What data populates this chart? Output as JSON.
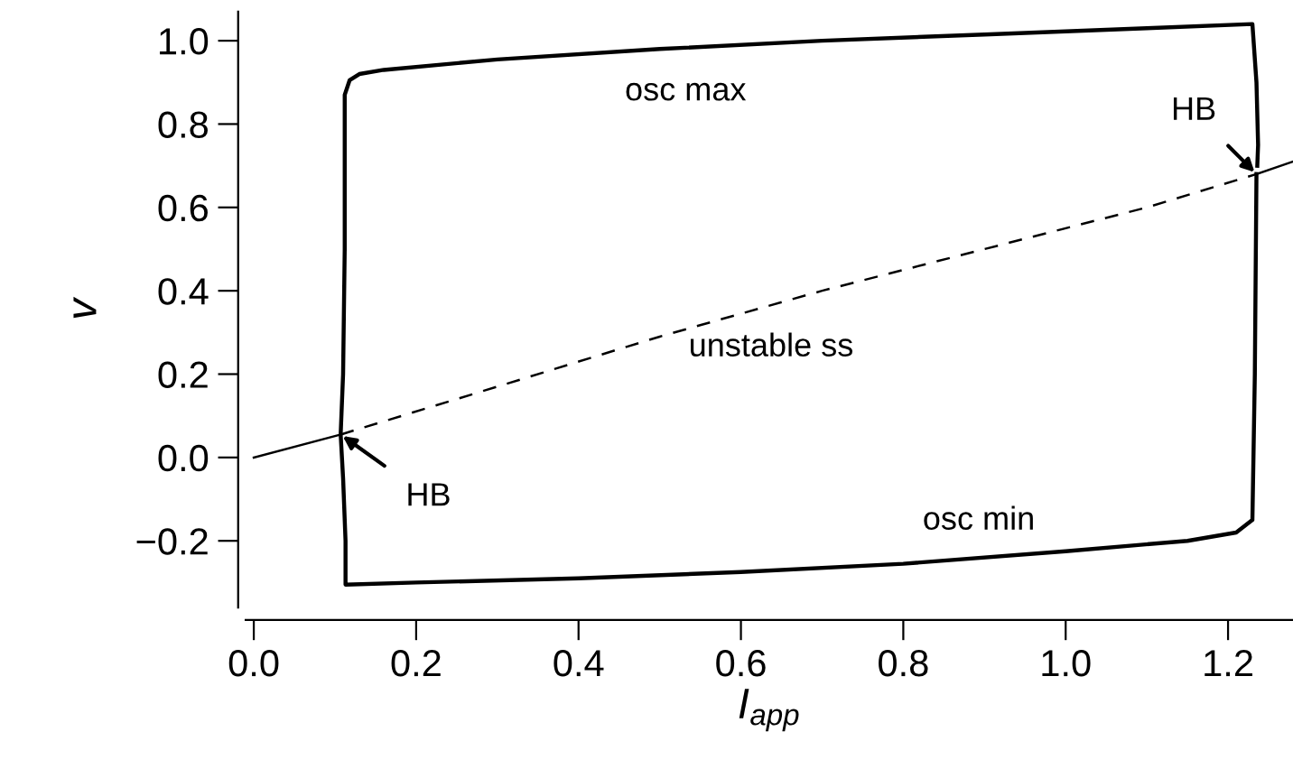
{
  "chart_data": {
    "type": "line",
    "xlabel": "I$_{app}$",
    "ylabel": "v",
    "xlim": [
      -0.01,
      1.28
    ],
    "ylim": [
      -0.36,
      1.07
    ],
    "xticks": [
      {
        "value": 0,
        "label": "0.0"
      },
      {
        "value": 0.2,
        "label": "0.2"
      },
      {
        "value": 0.4,
        "label": "0.4"
      },
      {
        "value": 0.6,
        "label": "0.6"
      },
      {
        "value": 0.8,
        "label": "0.8"
      },
      {
        "value": 1,
        "label": "1.0"
      },
      {
        "value": 1.2,
        "label": "1.2"
      }
    ],
    "yticks": [
      {
        "value": -0.2,
        "label": "−0.2"
      },
      {
        "value": 0,
        "label": "0.0"
      },
      {
        "value": 0.2,
        "label": "0.2"
      },
      {
        "value": 0.4,
        "label": "0.4"
      },
      {
        "value": 0.6,
        "label": "0.6"
      },
      {
        "value": 0.8,
        "label": "0.8"
      },
      {
        "value": 1,
        "label": "1.0"
      }
    ],
    "grid": false,
    "legend": false,
    "marker": "none",
    "series": [
      {
        "color": "#000000",
        "line_style": "solid",
        "x": [
          0,
          0.107
        ],
        "values": [
          0,
          0.055
        ]
      },
      {
        "name": "unstable ss",
        "color": "#000000",
        "line_style": "dashed",
        "x": [
          0.107,
          0.3,
          0.5,
          0.7,
          0.9,
          1.1,
          1.235
        ],
        "values": [
          0.055,
          0.17,
          0.29,
          0.4,
          0.5,
          0.6,
          0.68
        ]
      },
      {
        "color": "#000000",
        "line_style": "solid",
        "x": [
          1.235,
          1.28
        ],
        "values": [
          0.68,
          0.71
        ]
      },
      {
        "color": "#000000",
        "line_style": "solid",
        "x": [
          1.235,
          1.233,
          1.23,
          1.21,
          1.15,
          1.0,
          0.8,
          0.6,
          0.4,
          0.2,
          0.113,
          0.113,
          0.11,
          0.107,
          0.11,
          0.112,
          0.112,
          0.118,
          0.13,
          0.16,
          0.3,
          0.5,
          0.7,
          0.9,
          1.1,
          1.23,
          1.235,
          1.237,
          1.236
        ],
        "values": [
          0.68,
          0.2,
          -0.15,
          -0.18,
          -0.2,
          -0.225,
          -0.255,
          -0.275,
          -0.29,
          -0.3,
          -0.305,
          -0.2,
          -0.05,
          0.055,
          0.2,
          0.5,
          0.87,
          0.905,
          0.92,
          0.93,
          0.955,
          0.98,
          1.0,
          1.015,
          1.03,
          1.04,
          0.9,
          0.75,
          0.7
        ]
      }
    ],
    "annotations": [
      {
        "text": "HB",
        "x": 0.107,
        "y": 0.055
      },
      {
        "text": "HB",
        "x": 1.235,
        "y": 0.68
      },
      "osc max",
      "osc min"
    ]
  }
}
